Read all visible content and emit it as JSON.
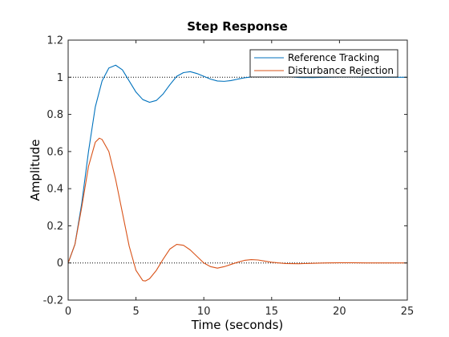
{
  "chart_data": {
    "type": "line",
    "title": "Step Response",
    "xlabel": "Time (seconds)",
    "ylabel": "Amplitude",
    "xlim": [
      0,
      25
    ],
    "ylim": [
      -0.2,
      1.2
    ],
    "xticks": [
      0,
      5,
      10,
      15,
      20,
      25
    ],
    "yticks": [
      -0.2,
      0,
      0.2,
      0.4,
      0.6,
      0.8,
      1,
      1.2
    ],
    "xtick_labels": [
      "0",
      "5",
      "10",
      "15",
      "20",
      "25"
    ],
    "ytick_labels": [
      "-0.2",
      "0",
      "0.2",
      "0.4",
      "0.6",
      "0.8",
      "1",
      "1.2"
    ],
    "grid": false,
    "legend_position": "top-right",
    "reference_lines": [
      1,
      0
    ],
    "series": [
      {
        "name": "Reference Tracking",
        "color": "#0072BD",
        "x": [
          0,
          0.5,
          1.0,
          1.5,
          2.0,
          2.5,
          3.0,
          3.5,
          4.0,
          4.5,
          5.0,
          5.5,
          6.0,
          6.5,
          7.0,
          7.5,
          8.0,
          8.5,
          9.0,
          9.5,
          10.0,
          10.5,
          11.0,
          11.5,
          12.0,
          12.5,
          13.0,
          14.0,
          15.0,
          16.0,
          17.0,
          18.0,
          19.0,
          20.0,
          21.0,
          22.0,
          23.0,
          24.0,
          25.0
        ],
        "y": [
          0,
          0.1,
          0.32,
          0.6,
          0.84,
          0.98,
          1.05,
          1.065,
          1.04,
          0.98,
          0.92,
          0.88,
          0.865,
          0.875,
          0.91,
          0.96,
          1.005,
          1.025,
          1.03,
          1.02,
          1.005,
          0.99,
          0.98,
          0.978,
          0.982,
          0.99,
          0.997,
          1.006,
          1.008,
          1.004,
          0.999,
          0.998,
          1.0,
          1.001,
          1.001,
          1.0,
          1.0,
          1.0,
          1.0
        ]
      },
      {
        "name": "Disturbance Rejection",
        "color": "#D95319",
        "x": [
          0,
          0.5,
          1.0,
          1.5,
          2.0,
          2.3,
          2.5,
          3.0,
          3.5,
          4.0,
          4.5,
          5.0,
          5.5,
          5.7,
          6.0,
          6.5,
          7.0,
          7.5,
          8.0,
          8.5,
          9.0,
          9.5,
          10.0,
          10.5,
          11.0,
          11.5,
          12.0,
          12.5,
          13.0,
          13.5,
          14.0,
          14.5,
          15.0,
          16.0,
          17.0,
          18.0,
          19.0,
          20.0,
          21.0,
          22.0,
          23.0,
          24.0,
          25.0
        ],
        "y": [
          0,
          0.1,
          0.3,
          0.52,
          0.65,
          0.672,
          0.665,
          0.6,
          0.45,
          0.27,
          0.09,
          -0.04,
          -0.095,
          -0.097,
          -0.085,
          -0.04,
          0.02,
          0.075,
          0.1,
          0.095,
          0.07,
          0.035,
          0.0,
          -0.02,
          -0.028,
          -0.02,
          -0.008,
          0.004,
          0.014,
          0.018,
          0.016,
          0.01,
          0.004,
          -0.003,
          -0.004,
          -0.002,
          0.0,
          0.001,
          0.001,
          0.0,
          0.0,
          0.0,
          0.0
        ]
      }
    ]
  }
}
